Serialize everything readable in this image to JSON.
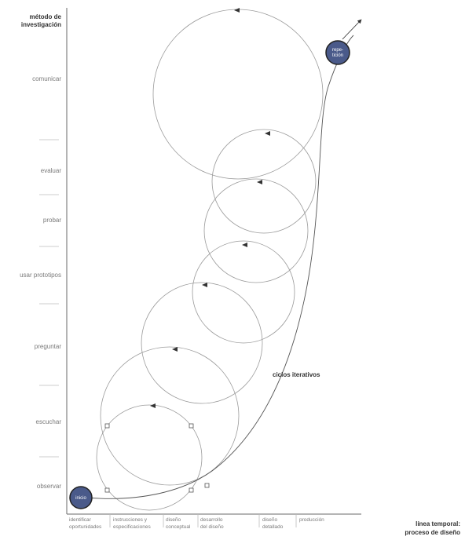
{
  "y_axis": {
    "title_line1": "método de",
    "title_line2": "investigación",
    "levels": [
      "comunicar",
      "evaluar",
      "probar",
      "usar prototipos",
      "preguntar",
      "escuchar",
      "observar"
    ]
  },
  "x_axis": {
    "title_line1": "línea temporal:",
    "title_line2": "proceso de diseño",
    "phases": [
      {
        "line1": "identificar",
        "line2": "oportunidades"
      },
      {
        "line1": "instrucciones y",
        "line2": "especificaciones"
      },
      {
        "line1": "diseño",
        "line2": "conceptual"
      },
      {
        "line1": "desarrollo",
        "line2": "del diseño"
      },
      {
        "line1": "diseño",
        "line2": "detallado"
      },
      {
        "line1": "producción",
        "line2": ""
      }
    ]
  },
  "annotation": "ciclos iterativos",
  "start_node": "inicio",
  "end_node_line1": "repe-",
  "end_node_line2": "tición",
  "colors": {
    "node_fill": "#4a5a8a",
    "circle_stroke": "#9a9a9a",
    "axis": "#6a6a6a"
  }
}
